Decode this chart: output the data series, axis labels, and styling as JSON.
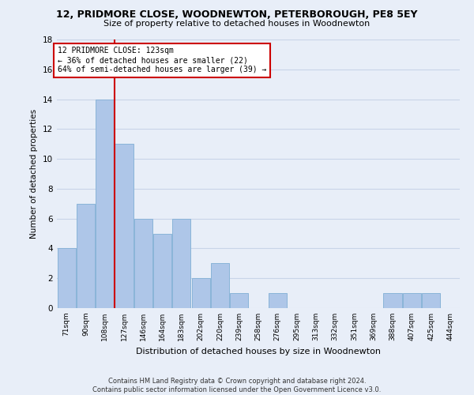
{
  "title": "12, PRIDMORE CLOSE, WOODNEWTON, PETERBOROUGH, PE8 5EY",
  "subtitle": "Size of property relative to detached houses in Woodnewton",
  "xlabel": "Distribution of detached houses by size in Woodnewton",
  "ylabel": "Number of detached properties",
  "footnote": "Contains HM Land Registry data © Crown copyright and database right 2024.\nContains public sector information licensed under the Open Government Licence v3.0.",
  "categories": [
    "71sqm",
    "90sqm",
    "108sqm",
    "127sqm",
    "146sqm",
    "164sqm",
    "183sqm",
    "202sqm",
    "220sqm",
    "239sqm",
    "258sqm",
    "276sqm",
    "295sqm",
    "313sqm",
    "332sqm",
    "351sqm",
    "369sqm",
    "388sqm",
    "407sqm",
    "425sqm",
    "444sqm"
  ],
  "values": [
    4,
    7,
    14,
    11,
    6,
    5,
    6,
    2,
    3,
    1,
    0,
    1,
    0,
    0,
    0,
    0,
    0,
    1,
    1,
    1,
    0
  ],
  "bar_color": "#aec6e8",
  "bar_edge_color": "#8ab4d8",
  "ref_line_color": "#cc0000",
  "annotation_box_color": "#cc0000",
  "annotation_text_line1": "12 PRIDMORE CLOSE: 123sqm",
  "annotation_text_line2": "← 36% of detached houses are smaller (22)",
  "annotation_text_line3": "64% of semi-detached houses are larger (39) →",
  "ylim": [
    0,
    18
  ],
  "yticks": [
    0,
    2,
    4,
    6,
    8,
    10,
    12,
    14,
    16,
    18
  ],
  "grid_color": "#c8d4e8",
  "background_color": "#e8eef8"
}
